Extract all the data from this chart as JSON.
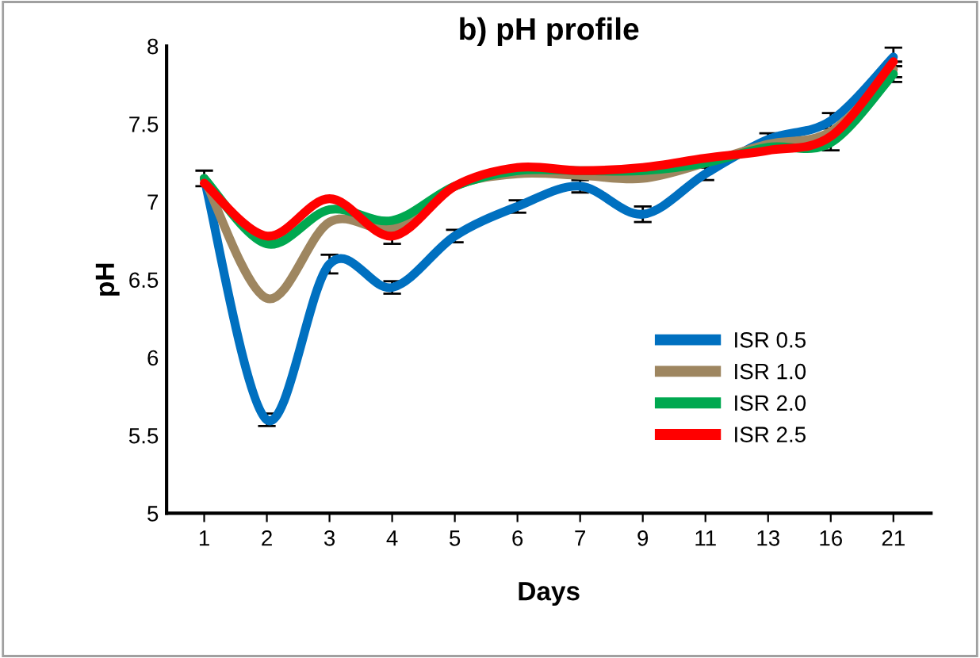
{
  "chart_data": {
    "type": "line",
    "title": "b) pH profile",
    "xlabel": "Days",
    "ylabel": "pH",
    "categories": [
      "1",
      "2",
      "3",
      "4",
      "5",
      "6",
      "7",
      "9",
      "11",
      "13",
      "16",
      "21"
    ],
    "ylim": [
      5,
      8
    ],
    "yticks": [
      5,
      5.5,
      6,
      6.5,
      7,
      7.5,
      8
    ],
    "grid": false,
    "legend": "right",
    "marker": "none",
    "line_style": "solid",
    "series": [
      {
        "name": "ISR 0.5",
        "color": "#0070c0",
        "values": [
          7.15,
          5.6,
          6.6,
          6.45,
          6.78,
          6.97,
          7.1,
          6.92,
          7.18,
          7.4,
          7.52,
          7.93
        ],
        "errors": [
          0.05,
          0.04,
          0.06,
          0.04,
          0.04,
          0.04,
          0.04,
          0.05,
          0.04,
          0.04,
          0.05,
          0.06
        ]
      },
      {
        "name": "ISR 1.0",
        "color": "#9e8660",
        "values": [
          7.15,
          6.38,
          6.87,
          6.83,
          7.1,
          7.18,
          7.17,
          7.15,
          7.25,
          7.37,
          7.45,
          7.85
        ],
        "errors": [
          null,
          null,
          null,
          null,
          null,
          null,
          null,
          null,
          null,
          null,
          null,
          0.05
        ]
      },
      {
        "name": "ISR 2.0",
        "color": "#00a850",
        "values": [
          7.15,
          6.73,
          6.95,
          6.88,
          7.1,
          7.2,
          7.2,
          7.2,
          7.25,
          7.35,
          7.38,
          7.82
        ],
        "errors": [
          null,
          null,
          null,
          null,
          null,
          null,
          null,
          null,
          null,
          null,
          0.05,
          0.05
        ]
      },
      {
        "name": "ISR 2.5",
        "color": "#ff0000",
        "values": [
          7.12,
          6.78,
          7.02,
          6.78,
          7.1,
          7.22,
          7.2,
          7.22,
          7.28,
          7.33,
          7.42,
          7.9
        ],
        "errors": [
          null,
          null,
          null,
          0.05,
          null,
          null,
          null,
          null,
          null,
          null,
          null,
          null
        ]
      }
    ]
  }
}
